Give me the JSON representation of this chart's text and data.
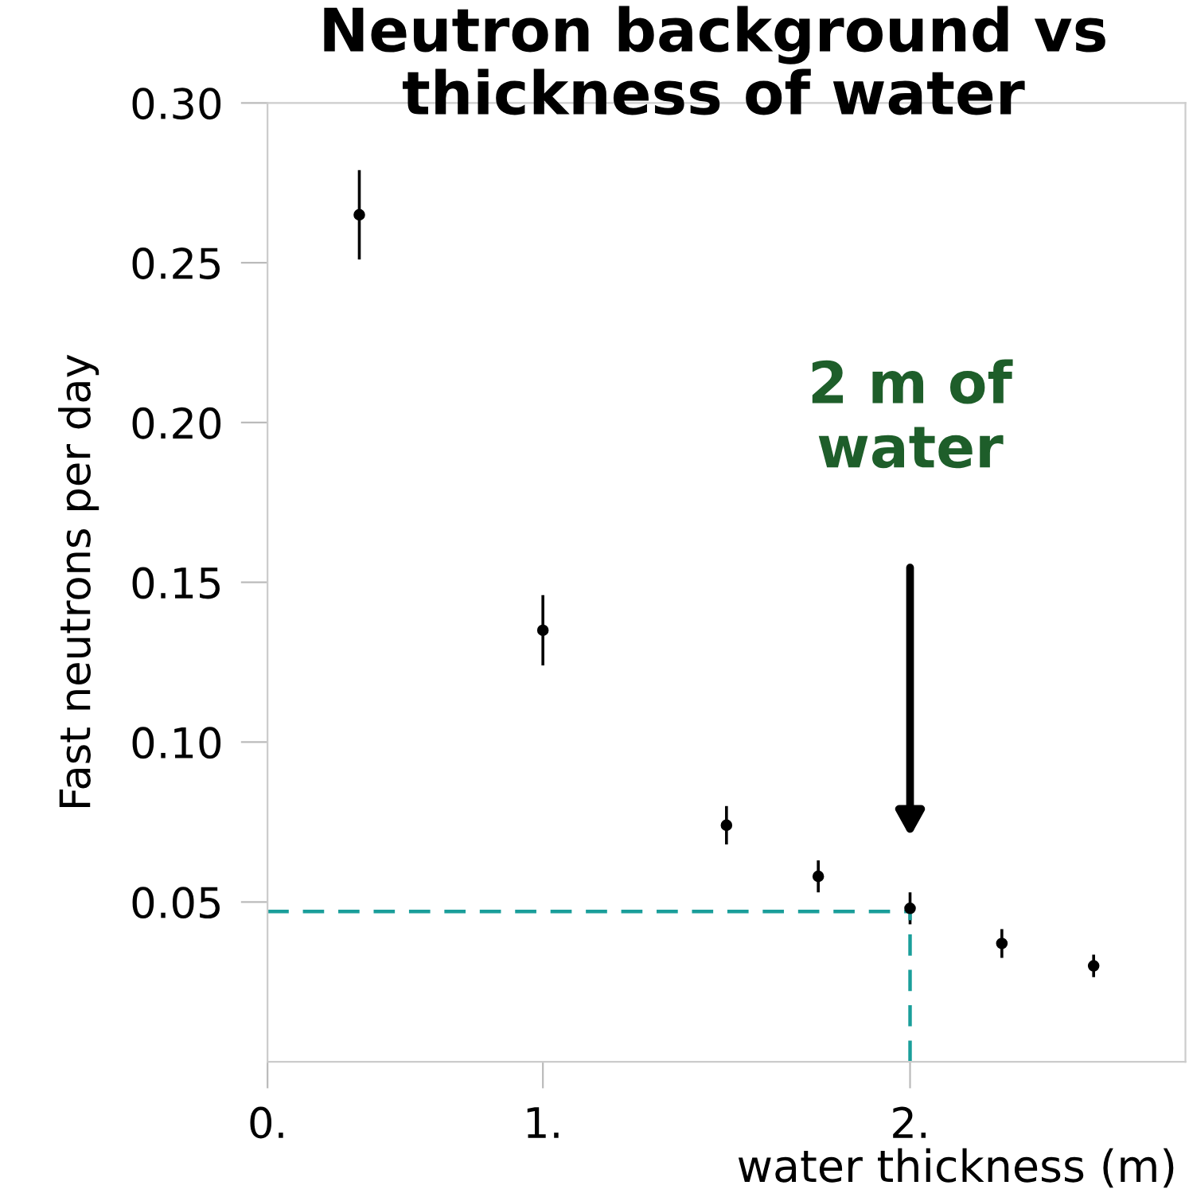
{
  "chart_data": {
    "type": "scatter",
    "title": "Neutron background vs\nthickness of water",
    "xlabel": "water thickness (m)",
    "ylabel": "Fast neutrons per day",
    "x": [
      0.5,
      1.0,
      1.5,
      1.75,
      2.0,
      2.25,
      2.5
    ],
    "series": [
      {
        "color": "#000000",
        "values": [
          0.265,
          0.135,
          0.074,
          0.058,
          0.048,
          0.037,
          0.03
        ],
        "errors": [
          0.014,
          0.011,
          0.006,
          0.005,
          0.005,
          0.0045,
          0.0035
        ]
      }
    ],
    "xlim": [
      0.25,
      2.75
    ],
    "xticks": [
      {
        "value": 0.25,
        "label": "0."
      },
      {
        "value": 1,
        "label": "1."
      },
      {
        "value": 2,
        "label": "2."
      }
    ],
    "ylim": [
      0,
      0.3
    ],
    "yticks": [
      {
        "value": 0.05,
        "label": "0.05"
      },
      {
        "value": 0.1,
        "label": "0.10"
      },
      {
        "value": 0.15,
        "label": "0.15"
      },
      {
        "value": 0.2,
        "label": "0.20"
      },
      {
        "value": 0.25,
        "label": "0.25"
      },
      {
        "value": 0.3,
        "label": "0.30"
      }
    ],
    "ref_lines": [
      {
        "axis": "y",
        "value": 0.047,
        "color": "#1a9e9a",
        "line_style": "dashed"
      },
      {
        "axis": "x",
        "value": 2.0,
        "color": "#1a9e9a",
        "line_style": "dashed"
      }
    ],
    "annotations": [
      "2 m of\nwater"
    ],
    "marker": "circle",
    "grid": false
  }
}
